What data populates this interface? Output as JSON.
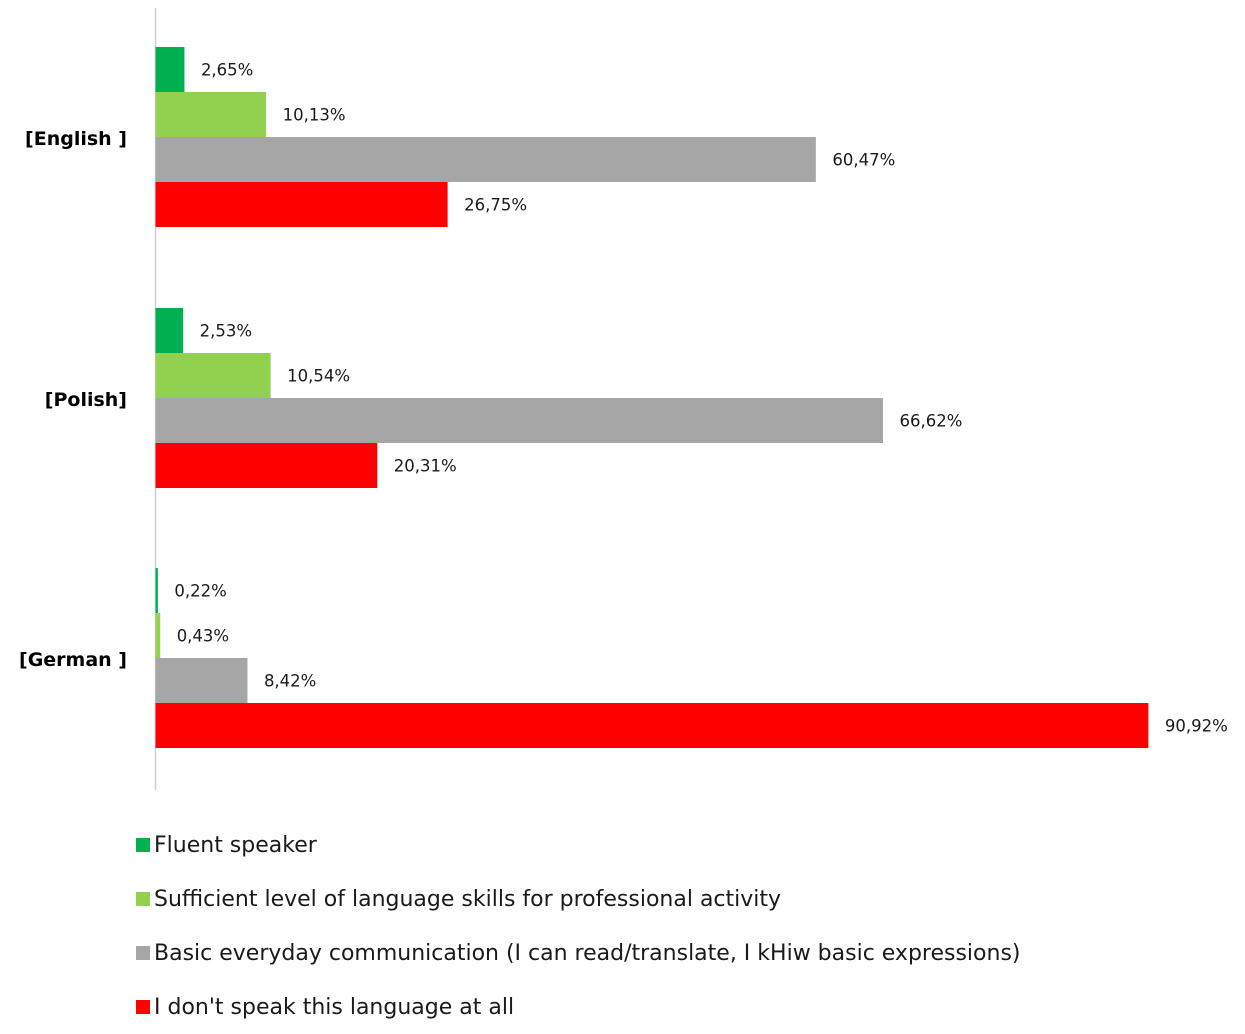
{
  "chart_data": {
    "type": "bar",
    "orientation": "horizontal",
    "categories": [
      "[English ]",
      "[Polish]",
      "[German ]"
    ],
    "series": [
      {
        "name": "Fluent speaker",
        "color": "#00b050",
        "values": [
          2.65,
          2.53,
          0.22
        ],
        "labels": [
          "2,65%",
          "2,53%",
          "0,22%"
        ]
      },
      {
        "name": "Sufficient level of language skills for professional activity",
        "color": "#92d050",
        "values": [
          10.13,
          10.54,
          0.43
        ],
        "labels": [
          "10,13%",
          "10,54%",
          "0,43%"
        ]
      },
      {
        "name": "Basic everyday communication (I can read/translate, I kHiw basic expressions)",
        "color": "#a6a6a6",
        "values": [
          60.47,
          66.62,
          8.42
        ],
        "labels": [
          "60,47%",
          "66,62%",
          "8,42%"
        ]
      },
      {
        "name": "I don't speak this language at all",
        "color": "#ff0000",
        "values": [
          26.75,
          20.31,
          90.92
        ],
        "labels": [
          "26,75%",
          "20,31%",
          "90,92%"
        ]
      }
    ],
    "xlim": [
      0,
      100
    ],
    "grid": false,
    "legend_position": "bottom"
  }
}
